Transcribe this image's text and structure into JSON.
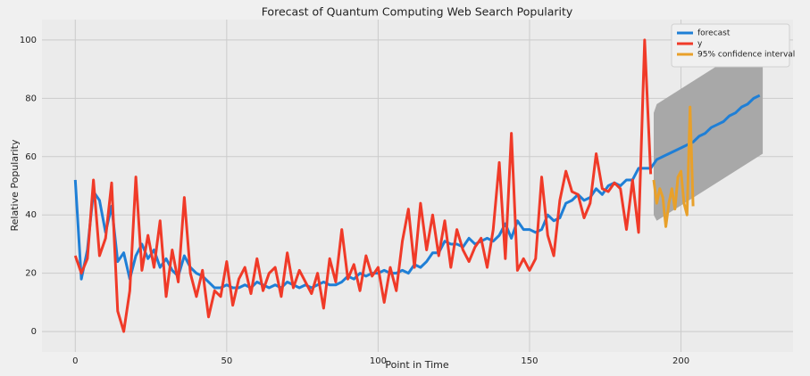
{
  "chart_data": {
    "type": "line",
    "title": "Forecast of Quantum Computing Web Search Popularity",
    "xlabel": "Point in Time",
    "ylabel": "Relative Popularity",
    "xlim": [
      -11,
      237
    ],
    "ylim": [
      -7,
      107
    ],
    "xticks": [
      0,
      50,
      100,
      150,
      200
    ],
    "yticks": [
      0,
      20,
      40,
      60,
      80,
      100
    ],
    "grid": true,
    "legend": "upper right",
    "series": [
      {
        "name": "forecast",
        "color": "#1f7fd6",
        "x": [
          0,
          2,
          4,
          6,
          8,
          10,
          12,
          14,
          16,
          18,
          20,
          22,
          24,
          26,
          28,
          30,
          32,
          34,
          36,
          38,
          40,
          42,
          44,
          46,
          48,
          50,
          52,
          54,
          56,
          58,
          60,
          62,
          64,
          66,
          68,
          70,
          72,
          74,
          76,
          78,
          80,
          82,
          84,
          86,
          88,
          90,
          92,
          94,
          96,
          98,
          100,
          102,
          104,
          106,
          108,
          110,
          112,
          114,
          116,
          118,
          120,
          122,
          124,
          126,
          128,
          130,
          132,
          134,
          136,
          138,
          140,
          142,
          144,
          146,
          148,
          150,
          152,
          154,
          156,
          158,
          160,
          162,
          164,
          166,
          168,
          170,
          172,
          174,
          176,
          178,
          180,
          182,
          184,
          186,
          188,
          190,
          192,
          194,
          196,
          198,
          200,
          202,
          204,
          206,
          208,
          210,
          212,
          214,
          216,
          218,
          220,
          222,
          224,
          226
        ],
        "values": [
          52,
          18,
          28,
          48,
          45,
          34,
          43,
          24,
          27,
          18,
          26,
          30,
          25,
          28,
          22,
          25,
          21,
          19,
          26,
          22,
          20,
          19,
          17,
          15,
          15,
          16,
          15,
          15,
          16,
          15,
          17,
          16,
          15,
          16,
          15,
          17,
          16,
          15,
          16,
          15,
          16,
          17,
          16,
          16,
          17,
          19,
          18,
          20,
          19,
          20,
          20,
          21,
          20,
          20,
          21,
          20,
          23,
          22,
          24,
          27,
          27,
          31,
          30,
          30,
          29,
          32,
          30,
          31,
          32,
          31,
          33,
          37,
          32,
          38,
          35,
          35,
          34,
          35,
          40,
          38,
          39,
          44,
          45,
          47,
          45,
          46,
          49,
          47,
          50,
          51,
          50,
          52,
          52,
          56,
          56,
          56,
          59,
          60,
          61,
          62,
          63,
          64,
          65,
          67,
          68,
          70,
          71,
          72,
          74,
          75,
          77,
          78,
          80,
          81
        ]
      },
      {
        "name": "y",
        "color": "#f03a28",
        "x": [
          0,
          2,
          4,
          6,
          8,
          10,
          12,
          14,
          16,
          18,
          20,
          22,
          24,
          26,
          28,
          30,
          32,
          34,
          36,
          38,
          40,
          42,
          44,
          46,
          48,
          50,
          52,
          54,
          56,
          58,
          60,
          62,
          64,
          66,
          68,
          70,
          72,
          74,
          76,
          78,
          80,
          82,
          84,
          86,
          88,
          90,
          92,
          94,
          96,
          98,
          100,
          102,
          104,
          106,
          108,
          110,
          112,
          114,
          116,
          118,
          120,
          122,
          124,
          126,
          128,
          130,
          132,
          134,
          136,
          138,
          140,
          142,
          144,
          146,
          148,
          150,
          152,
          154,
          156,
          158,
          160,
          162,
          164,
          166,
          168,
          170,
          172,
          174,
          176,
          178,
          180,
          182,
          184,
          186,
          188,
          190
        ],
        "values": [
          26,
          20,
          25,
          52,
          26,
          32,
          51,
          7,
          0,
          14,
          53,
          21,
          33,
          22,
          38,
          12,
          28,
          17,
          46,
          20,
          12,
          21,
          5,
          14,
          12,
          24,
          9,
          18,
          22,
          13,
          25,
          14,
          20,
          22,
          12,
          27,
          15,
          21,
          17,
          13,
          20,
          8,
          25,
          17,
          35,
          18,
          23,
          14,
          26,
          19,
          22,
          10,
          22,
          14,
          31,
          42,
          22,
          44,
          28,
          40,
          26,
          38,
          22,
          35,
          28,
          24,
          29,
          32,
          22,
          35,
          58,
          25,
          68,
          21,
          25,
          21,
          25,
          53,
          33,
          26,
          45,
          55,
          48,
          47,
          39,
          44,
          61,
          49,
          48,
          51,
          49,
          35,
          52,
          34,
          100,
          54
        ]
      },
      {
        "name": "95% confidence interval",
        "color": "#e8a02a",
        "x": [
          191,
          192,
          193,
          194,
          195,
          196,
          197,
          198,
          199,
          200,
          201,
          202,
          203,
          204
        ],
        "values": [
          52,
          44,
          49,
          46,
          36,
          44,
          49,
          42,
          53,
          55,
          44,
          40,
          77,
          43
        ]
      }
    ],
    "band": {
      "color": "#a8a8a8",
      "x": [
        191,
        192,
        227
      ],
      "lower": [
        40,
        38,
        61
      ],
      "upper": [
        75,
        78,
        101
      ]
    }
  }
}
